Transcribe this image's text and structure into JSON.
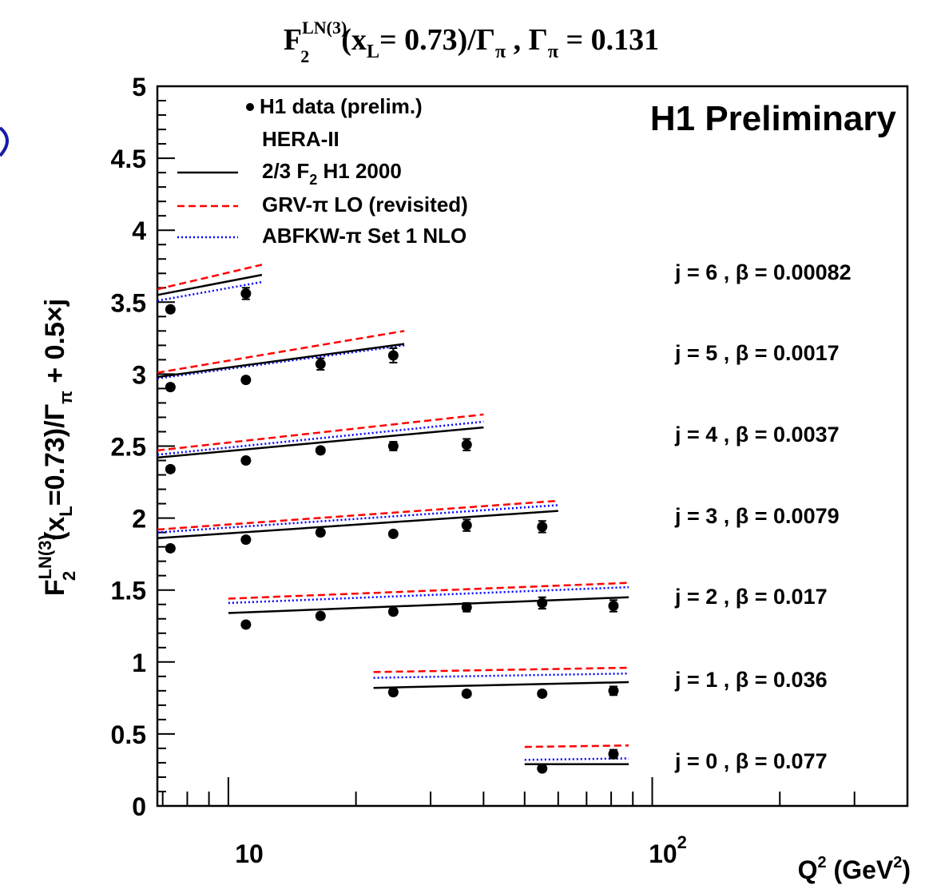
{
  "header": {
    "title_main": "F",
    "title_sup": "LN(3)",
    "title_sub": "2",
    "title_rest_a": "(x",
    "title_rest_sub": "L",
    "title_rest_b": "= 0.73)/Γ",
    "title_rest_sub2": "π",
    "title_rest_c": " ,  Γ",
    "title_rest_sub3": "π",
    "title_rest_d": " = 0.131"
  },
  "plot": {
    "watermark": "H1 Preliminary",
    "ylabel": {
      "a": "F",
      "sup": "LN(3)",
      "sub": "2",
      "b": "(x",
      "sub_L": "L",
      "c": "=0.73)/Γ",
      "sub_pi": "π",
      "d": " + 0.5×j"
    },
    "xlabel": {
      "a": "Q",
      "sup": "2",
      "b": " (GeV",
      "sup2": "2",
      "c": ")"
    },
    "xtick_labels": [
      {
        "base": "10",
        "exp": ""
      },
      {
        "base": "10",
        "exp": "2"
      }
    ],
    "ytick_labels": [
      "0",
      "0.5",
      "1",
      "1.5",
      "2",
      "2.5",
      "3",
      "3.5",
      "4",
      "4.5",
      "5"
    ]
  },
  "legend": {
    "items": [
      {
        "label": "H1 data (prelim.)",
        "style": "marker"
      },
      {
        "label": "HERA-II",
        "style": "none"
      },
      {
        "label": "2/3 F",
        "sub": "2",
        "label2": "  H1 2000",
        "style": "solid",
        "color": "#000000"
      },
      {
        "label": "GRV-π LO (revisited)",
        "style": "dashed",
        "color": "#ff0000"
      },
      {
        "label": "ABFKW-π Set 1 NLO",
        "style": "dotted",
        "color": "#0000ff"
      }
    ]
  },
  "chart_data": {
    "type": "scatter",
    "title": "F2 LN(3)(xL= 0.73)/Γπ , Γπ = 0.131",
    "xlabel": "Q2 (GeV2)",
    "ylabel": "F2 LN(3)(xL=0.73)/Γπ + 0.5×j",
    "xscale": "log",
    "xlim": [
      6.8,
      400
    ],
    "ylim": [
      0,
      5
    ],
    "colors": {
      "data": "#000000",
      "h1_2000": "#000000",
      "grv": "#ff0000",
      "abfkw": "#0000ff"
    },
    "bins": [
      {
        "label": "j = 6 , β = 0.00082",
        "data": [
          {
            "x": 7.3,
            "y": 3.45,
            "err": 0.02
          },
          {
            "x": 11.0,
            "y": 3.56,
            "err": 0.04
          }
        ],
        "curves": {
          "h1_2000": [
            [
              6.8,
              3.55
            ],
            [
              12.0,
              3.69
            ]
          ],
          "grv": [
            [
              6.8,
              3.59
            ],
            [
              12.0,
              3.76
            ]
          ],
          "abfkw": [
            [
              6.8,
              3.51
            ],
            [
              12.0,
              3.64
            ]
          ]
        }
      },
      {
        "label": "j = 5 , β = 0.0017",
        "data": [
          {
            "x": 7.3,
            "y": 2.91,
            "err": 0.02
          },
          {
            "x": 11.0,
            "y": 2.96,
            "err": 0.02
          },
          {
            "x": 16.5,
            "y": 3.07,
            "err": 0.04
          },
          {
            "x": 24.5,
            "y": 3.13,
            "err": 0.05
          }
        ],
        "curves": {
          "h1_2000": [
            [
              6.8,
              2.98
            ],
            [
              26.0,
              3.21
            ]
          ],
          "grv": [
            [
              6.8,
              3.01
            ],
            [
              26.0,
              3.3
            ]
          ],
          "abfkw": [
            [
              6.8,
              2.97
            ],
            [
              26.0,
              3.2
            ]
          ]
        }
      },
      {
        "label": "j = 4 , β = 0.0037",
        "data": [
          {
            "x": 7.3,
            "y": 2.34,
            "err": 0.02
          },
          {
            "x": 11.0,
            "y": 2.4,
            "err": 0.02
          },
          {
            "x": 16.5,
            "y": 2.47,
            "err": 0.02
          },
          {
            "x": 24.5,
            "y": 2.5,
            "err": 0.03
          },
          {
            "x": 36.5,
            "y": 2.51,
            "err": 0.04
          }
        ],
        "curves": {
          "h1_2000": [
            [
              6.8,
              2.42
            ],
            [
              40.0,
              2.63
            ]
          ],
          "grv": [
            [
              6.8,
              2.47
            ],
            [
              40.0,
              2.72
            ]
          ],
          "abfkw": [
            [
              6.8,
              2.44
            ],
            [
              40.0,
              2.67
            ]
          ]
        }
      },
      {
        "label": "j = 3 , β = 0.0079",
        "data": [
          {
            "x": 7.3,
            "y": 1.79,
            "err": 0.02
          },
          {
            "x": 11.0,
            "y": 1.85,
            "err": 0.02
          },
          {
            "x": 16.5,
            "y": 1.9,
            "err": 0.02
          },
          {
            "x": 24.5,
            "y": 1.89,
            "err": 0.02
          },
          {
            "x": 36.5,
            "y": 1.95,
            "err": 0.04
          },
          {
            "x": 55.0,
            "y": 1.94,
            "err": 0.04
          }
        ],
        "curves": {
          "h1_2000": [
            [
              6.8,
              1.86
            ],
            [
              60.0,
              2.05
            ]
          ],
          "grv": [
            [
              6.8,
              1.92
            ],
            [
              60.0,
              2.12
            ]
          ],
          "abfkw": [
            [
              6.8,
              1.9
            ],
            [
              60.0,
              2.09
            ]
          ]
        }
      },
      {
        "label": "j = 2 , β = 0.017",
        "data": [
          {
            "x": 11.0,
            "y": 1.26,
            "err": 0.02
          },
          {
            "x": 16.5,
            "y": 1.32,
            "err": 0.02
          },
          {
            "x": 24.5,
            "y": 1.35,
            "err": 0.02
          },
          {
            "x": 36.5,
            "y": 1.38,
            "err": 0.03
          },
          {
            "x": 55.0,
            "y": 1.41,
            "err": 0.04
          },
          {
            "x": 81.0,
            "y": 1.39,
            "err": 0.04
          }
        ],
        "curves": {
          "h1_2000": [
            [
              10.0,
              1.34
            ],
            [
              88.0,
              1.45
            ]
          ],
          "grv": [
            [
              10.0,
              1.44
            ],
            [
              88.0,
              1.55
            ]
          ],
          "abfkw": [
            [
              10.0,
              1.41
            ],
            [
              88.0,
              1.52
            ]
          ]
        }
      },
      {
        "label": "j = 1 , β = 0.036",
        "data": [
          {
            "x": 24.5,
            "y": 0.79,
            "err": 0.02
          },
          {
            "x": 36.5,
            "y": 0.78,
            "err": 0.02
          },
          {
            "x": 55.0,
            "y": 0.78,
            "err": 0.02
          },
          {
            "x": 81.0,
            "y": 0.8,
            "err": 0.03
          }
        ],
        "curves": {
          "h1_2000": [
            [
              22.0,
              0.82
            ],
            [
              88.0,
              0.86
            ]
          ],
          "grv": [
            [
              22.0,
              0.93
            ],
            [
              88.0,
              0.96
            ]
          ],
          "abfkw": [
            [
              22.0,
              0.89
            ],
            [
              88.0,
              0.92
            ]
          ]
        }
      },
      {
        "label": "j = 0 , β = 0.077",
        "data": [
          {
            "x": 55.0,
            "y": 0.26,
            "err": 0.01
          },
          {
            "x": 81.0,
            "y": 0.36,
            "err": 0.03
          }
        ],
        "curves": {
          "h1_2000": [
            [
              50.0,
              0.29
            ],
            [
              88.0,
              0.29
            ]
          ],
          "grv": [
            [
              50.0,
              0.41
            ],
            [
              88.0,
              0.42
            ]
          ],
          "abfkw": [
            [
              50.0,
              0.32
            ],
            [
              88.0,
              0.33
            ]
          ]
        }
      }
    ]
  }
}
